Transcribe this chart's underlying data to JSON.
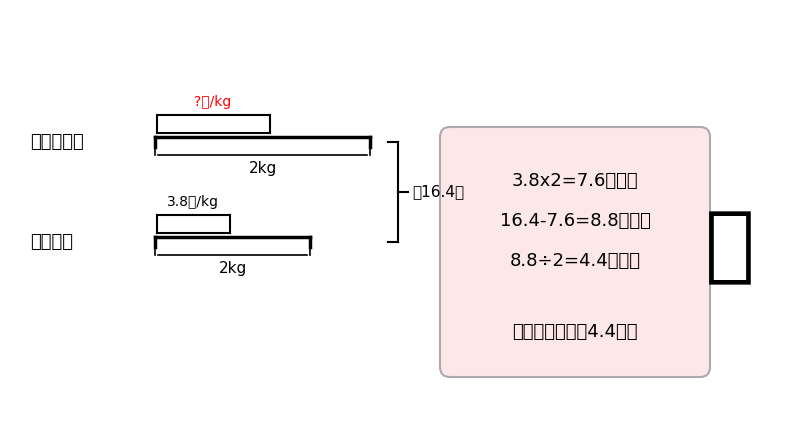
{
  "bg_color": "#ffffff",
  "left_section": {
    "apple_label": "苹果总价：",
    "pear_label": "梨总价：",
    "apple_price_label": "?元/kg",
    "apple_price_color": "#ff0000",
    "pear_price_label": "3.8元/kg",
    "pear_price_color": "#000000",
    "weight_label": "2kg",
    "total_label": "共16.4元"
  },
  "right_box": {
    "bg_color": "#fce8e8",
    "border_color": "#b0a8b0",
    "line1": "3.8x2=7.6（元）",
    "line2": "16.4-7.6=8.8（元）",
    "line3": "8.8÷2=4.4（元）",
    "answer": "答：苹果每千克4.4元。",
    "fontsize": 13
  }
}
